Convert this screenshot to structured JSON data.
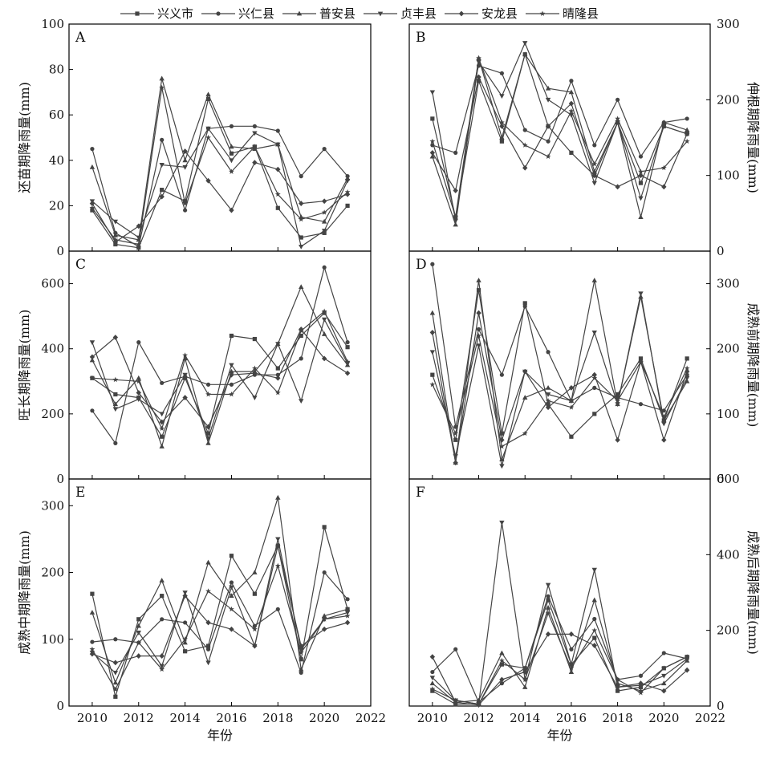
{
  "legend": {
    "entries": [
      "兴义市",
      "兴仁县",
      "普安县",
      "贞丰县",
      "安龙县",
      "晴隆县"
    ],
    "placement": "top-center"
  },
  "shared_x": {
    "label": "年份",
    "range": [
      2009,
      2022
    ],
    "ticks": [
      2010,
      2012,
      2014,
      2016,
      2018,
      2020,
      2022
    ]
  },
  "style": {
    "line_color": "#444444",
    "frame_color": "#000000"
  },
  "chart_data": [
    {
      "panel": "A",
      "type": "line",
      "title": "",
      "xlabel": "年份",
      "ylabel": "还苗期降雨量(mm)",
      "y_axis_side": "left",
      "ylim": [
        0,
        100
      ],
      "yticks": [
        0,
        20,
        40,
        60,
        80,
        100
      ],
      "grid": false,
      "x": [
        2010,
        2011,
        2012,
        2013,
        2014,
        2015,
        2016,
        2017,
        2018,
        2019,
        2020,
        2021
      ],
      "series": [
        {
          "name": "兴义市",
          "values": [
            18,
            3,
            1.5,
            27,
            22,
            67,
            43,
            46,
            19,
            6,
            8,
            20
          ]
        },
        {
          "name": "兴仁县",
          "values": [
            45,
            8,
            2,
            49,
            18,
            54,
            55,
            55,
            53,
            33,
            45,
            33
          ]
        },
        {
          "name": "普安县",
          "values": [
            37,
            7,
            5,
            76,
            40,
            69,
            46,
            45,
            47,
            15,
            13,
            32
          ]
        },
        {
          "name": "贞丰县",
          "values": [
            22,
            13,
            6,
            38,
            37,
            54,
            40,
            52,
            47,
            2,
            9,
            31
          ]
        },
        {
          "name": "安龙县",
          "values": [
            21,
            4,
            11,
            24,
            44,
            31,
            18,
            39,
            36,
            21,
            22,
            25
          ]
        },
        {
          "name": "晴隆县",
          "values": [
            19,
            5,
            3,
            72,
            21,
            50,
            35,
            46,
            25,
            14,
            17,
            26
          ]
        }
      ]
    },
    {
      "panel": "B",
      "type": "line",
      "title": "",
      "xlabel": "年份",
      "ylabel": "伸根期降雨量(mm)",
      "y_axis_side": "right",
      "ylim": [
        0,
        300
      ],
      "yticks": [
        0,
        100,
        200,
        300
      ],
      "grid": false,
      "x": [
        2010,
        2011,
        2012,
        2013,
        2014,
        2015,
        2016,
        2017,
        2018,
        2019,
        2020,
        2021
      ],
      "series": [
        {
          "name": "兴义市",
          "values": [
            175,
            45,
            225,
            145,
            260,
            165,
            130,
            100,
            170,
            90,
            165,
            155
          ]
        },
        {
          "name": "兴仁县",
          "values": [
            140,
            130,
            245,
            235,
            160,
            145,
            225,
            140,
            200,
            125,
            170,
            175
          ]
        },
        {
          "name": "普安县",
          "values": [
            125,
            35,
            255,
            150,
            260,
            215,
            210,
            105,
            170,
            45,
            170,
            160
          ]
        },
        {
          "name": "贞丰县",
          "values": [
            210,
            40,
            250,
            205,
            275,
            200,
            180,
            90,
            170,
            70,
            165,
            155
          ]
        },
        {
          "name": "安龙县",
          "values": [
            130,
            80,
            230,
            165,
            110,
            165,
            195,
            100,
            85,
            100,
            85,
            155
          ]
        },
        {
          "name": "晴隆县",
          "values": [
            145,
            45,
            255,
            170,
            140,
            125,
            185,
            115,
            175,
            105,
            110,
            145
          ]
        }
      ]
    },
    {
      "panel": "C",
      "type": "line",
      "title": "",
      "xlabel": "年份",
      "ylabel": "旺长期降雨量(mm)",
      "y_axis_side": "left",
      "ylim": [
        0,
        700
      ],
      "yticks": [
        0,
        200,
        400,
        600
      ],
      "grid": false,
      "x": [
        2010,
        2011,
        2012,
        2013,
        2014,
        2015,
        2016,
        2017,
        2018,
        2019,
        2020,
        2021
      ],
      "series": [
        {
          "name": "兴义市",
          "values": [
            310,
            260,
            250,
            130,
            310,
            140,
            440,
            430,
            340,
            440,
            510,
            405
          ]
        },
        {
          "name": "兴仁县",
          "values": [
            210,
            110,
            420,
            295,
            315,
            290,
            290,
            320,
            320,
            370,
            650,
            420
          ]
        },
        {
          "name": "普安县",
          "values": [
            365,
            230,
            310,
            100,
            370,
            110,
            330,
            330,
            415,
            590,
            445,
            350
          ]
        },
        {
          "name": "贞丰县",
          "values": [
            420,
            215,
            245,
            200,
            320,
            125,
            350,
            250,
            415,
            240,
            490,
            355
          ]
        },
        {
          "name": "安龙县",
          "values": [
            375,
            435,
            265,
            175,
            250,
            160,
            320,
            325,
            310,
            460,
            370,
            325
          ]
        },
        {
          "name": "晴隆县",
          "values": [
            310,
            305,
            300,
            155,
            380,
            260,
            260,
            340,
            265,
            455,
            515,
            360
          ]
        }
      ]
    },
    {
      "panel": "D",
      "type": "line",
      "title": "",
      "xlabel": "年份",
      "ylabel": "成熟前期降雨量(mm)",
      "y_axis_side": "right",
      "ylim": [
        0,
        350
      ],
      "yticks": [
        0,
        100,
        200,
        300
      ],
      "grid": false,
      "x": [
        2010,
        2011,
        2012,
        2013,
        2014,
        2015,
        2016,
        2017,
        2018,
        2019,
        2020,
        2021
      ],
      "series": [
        {
          "name": "兴义市",
          "values": [
            160,
            60,
            290,
            70,
            270,
            115,
            65,
            100,
            130,
            185,
            90,
            185
          ]
        },
        {
          "name": "兴仁县",
          "values": [
            330,
            80,
            230,
            160,
            265,
            195,
            120,
            140,
            125,
            115,
            105,
            160
          ]
        },
        {
          "name": "普安县",
          "values": [
            255,
            25,
            305,
            30,
            125,
            140,
            120,
            305,
            115,
            280,
            90,
            150
          ]
        },
        {
          "name": "贞丰县",
          "values": [
            195,
            35,
            205,
            20,
            165,
            130,
            120,
            225,
            115,
            285,
            85,
            155
          ]
        },
        {
          "name": "安龙县",
          "values": [
            225,
            25,
            255,
            60,
            165,
            110,
            140,
            160,
            60,
            180,
            60,
            165
          ]
        },
        {
          "name": "晴隆县",
          "values": [
            145,
            70,
            220,
            50,
            70,
            120,
            110,
            155,
            120,
            180,
            95,
            170
          ]
        }
      ]
    },
    {
      "panel": "E",
      "type": "line",
      "title": "",
      "xlabel": "年份",
      "ylabel": "成熟中期降雨量(mm)",
      "y_axis_side": "left",
      "ylim": [
        0,
        340
      ],
      "yticks": [
        0,
        100,
        200,
        300
      ],
      "grid": false,
      "x": [
        2010,
        2011,
        2012,
        2013,
        2014,
        2015,
        2016,
        2017,
        2018,
        2019,
        2020,
        2021
      ],
      "series": [
        {
          "name": "兴义市",
          "values": [
            168,
            14,
            130,
            165,
            82,
            90,
            225,
            168,
            240,
            70,
            268,
            145
          ]
        },
        {
          "name": "兴仁县",
          "values": [
            96,
            100,
            95,
            130,
            125,
            85,
            185,
            120,
            145,
            50,
            200,
            160
          ]
        },
        {
          "name": "普安县",
          "values": [
            140,
            35,
            120,
            188,
            95,
            215,
            165,
            200,
            312,
            55,
            135,
            145
          ]
        },
        {
          "name": "贞丰县",
          "values": [
            80,
            50,
            110,
            60,
            170,
            65,
            178,
            90,
            250,
            85,
            130,
            140
          ]
        },
        {
          "name": "安龙县",
          "values": [
            78,
            65,
            75,
            75,
            165,
            125,
            115,
            90,
            240,
            90,
            115,
            125
          ]
        },
        {
          "name": "晴隆县",
          "values": [
            85,
            25,
            95,
            55,
            100,
            172,
            145,
            115,
            210,
            80,
            130,
            135
          ]
        }
      ]
    },
    {
      "panel": "F",
      "type": "line",
      "title": "",
      "xlabel": "年份",
      "ylabel": "成熟后期降雨量(mm)",
      "y_axis_side": "right",
      "ylim": [
        0,
        600
      ],
      "yticks": [
        0,
        200,
        400,
        600
      ],
      "grid": false,
      "x": [
        2010,
        2011,
        2012,
        2013,
        2014,
        2015,
        2016,
        2017,
        2018,
        2019,
        2020,
        2021
      ],
      "series": [
        {
          "name": "兴义市",
          "values": [
            40,
            5,
            5,
            110,
            100,
            280,
            110,
            180,
            40,
            50,
            100,
            130
          ]
        },
        {
          "name": "兴仁县",
          "values": [
            90,
            150,
            10,
            60,
            100,
            290,
            150,
            230,
            70,
            80,
            140,
            125
          ]
        },
        {
          "name": "普安县",
          "values": [
            60,
            10,
            15,
            140,
            50,
            260,
            90,
            280,
            60,
            40,
            60,
            120
          ]
        },
        {
          "name": "贞丰县",
          "values": [
            75,
            15,
            5,
            485,
            70,
            320,
            110,
            360,
            50,
            55,
            80,
            125
          ]
        },
        {
          "name": "安龙县",
          "values": [
            130,
            10,
            3,
            70,
            90,
            190,
            190,
            160,
            50,
            60,
            40,
            95
          ]
        },
        {
          "name": "晴隆县",
          "values": [
            45,
            15,
            5,
            120,
            70,
            245,
            100,
            200,
            70,
            35,
            100,
            130
          ]
        }
      ]
    }
  ]
}
